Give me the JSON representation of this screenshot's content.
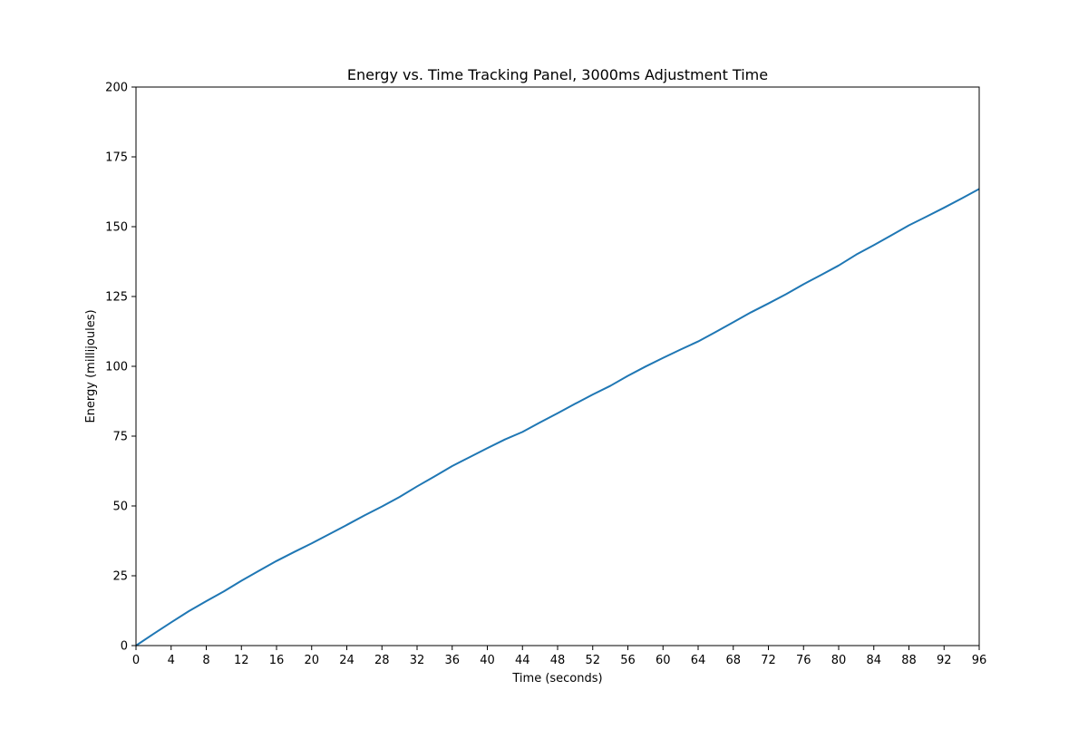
{
  "chart_data": {
    "type": "line",
    "title": "Energy vs. Time Tracking Panel, 3000ms Adjustment Time",
    "xlabel": "Time (seconds)",
    "ylabel": "Energy (millijoules)",
    "xlim": [
      0,
      96
    ],
    "ylim": [
      0,
      200
    ],
    "xticks": [
      0,
      4,
      8,
      12,
      16,
      20,
      24,
      28,
      32,
      36,
      40,
      44,
      48,
      52,
      56,
      60,
      64,
      68,
      72,
      76,
      80,
      84,
      88,
      92,
      96
    ],
    "yticks": [
      0,
      25,
      50,
      75,
      100,
      125,
      150,
      175,
      200
    ],
    "grid": false,
    "series_color": "#1f77b4",
    "series": [
      {
        "x": [
          0,
          2,
          4,
          6,
          8,
          10,
          12,
          14,
          16,
          18,
          20,
          22,
          24,
          26,
          28,
          30,
          32,
          34,
          36,
          38,
          40,
          42,
          44,
          46,
          48,
          50,
          52,
          54,
          56,
          58,
          60,
          62,
          64,
          66,
          68,
          70,
          72,
          74,
          76,
          78,
          80,
          82,
          84,
          86,
          88,
          90,
          92,
          94,
          96
        ],
        "values": [
          0,
          4.2,
          8.3,
          12.3,
          15.9,
          19.4,
          23.2,
          26.8,
          30.3,
          33.5,
          36.6,
          39.9,
          43.2,
          46.6,
          49.8,
          53.2,
          57.0,
          60.6,
          64.3,
          67.5,
          70.7,
          73.8,
          76.5,
          79.9,
          83.2,
          86.6,
          89.9,
          93.0,
          96.6,
          99.9,
          103.0,
          106.0,
          108.9,
          112.3,
          115.8,
          119.3,
          122.5,
          125.8,
          129.4,
          132.7,
          136.1,
          140.0,
          143.4,
          146.9,
          150.5,
          153.6,
          156.8,
          160.1,
          163.5
        ]
      }
    ]
  }
}
